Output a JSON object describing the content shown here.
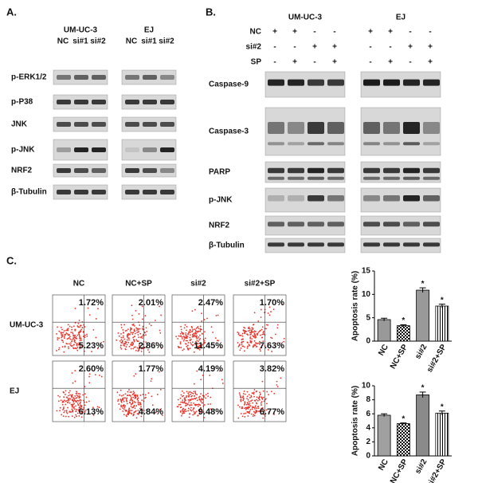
{
  "panel_a": {
    "label": "A.",
    "groups": [
      {
        "name": "UM-UC-3",
        "lanes": [
          "NC",
          "si#1",
          "si#2"
        ]
      },
      {
        "name": "EJ",
        "lanes": [
          "NC",
          "si#1",
          "si#2"
        ]
      }
    ],
    "blots": [
      "p-ERK1/2",
      "p-P38",
      "JNK",
      "p-JNK",
      "NRF2",
      "β-Tubulin"
    ]
  },
  "panel_b": {
    "label": "B.",
    "groups": [
      "UM-UC-3",
      "EJ"
    ],
    "conditions": [
      {
        "name": "NC",
        "signs": [
          "+",
          "+",
          "-",
          "-",
          "+",
          "+",
          "-",
          "-"
        ]
      },
      {
        "name": "si#2",
        "signs": [
          "-",
          "-",
          "+",
          "+",
          "-",
          "-",
          "+",
          "+"
        ]
      },
      {
        "name": "SP",
        "signs": [
          "-",
          "+",
          "-",
          "+",
          "-",
          "+",
          "-",
          "+"
        ]
      }
    ],
    "blots": [
      "Caspase-9",
      "Caspase-3",
      "PARP",
      "p-JNK",
      "NRF2",
      "β-Tubulin"
    ]
  },
  "panel_c": {
    "label": "C.",
    "columns": [
      "NC",
      "NC+SP",
      "si#2",
      "si#2+SP"
    ],
    "rows": [
      {
        "name": "UM-UC-3",
        "upper": [
          "1.72%",
          "2.01%",
          "2.47%",
          "1.70%"
        ],
        "lower": [
          "5.23%",
          "2.86%",
          "11.45%",
          "7.63%"
        ]
      },
      {
        "name": "EJ",
        "upper": [
          "2.60%",
          "1.77%",
          "4.19%",
          "3.82%"
        ],
        "lower": [
          "6.13%",
          "4.84%",
          "9.48%",
          "6.77%"
        ]
      }
    ],
    "charts": [
      {
        "type": "bar",
        "ylabel": "Apoptosis rate (%)",
        "categories": [
          "NC",
          "NC+SP",
          "si#2",
          "si#2+SP"
        ],
        "values": [
          4.6,
          3.3,
          10.9,
          7.5
        ],
        "errors": [
          0.3,
          0.2,
          0.5,
          0.4
        ],
        "ylim": [
          0,
          15
        ],
        "yticks": [
          0,
          5,
          10,
          15
        ],
        "significance": [
          null,
          "*",
          "*",
          "*"
        ]
      },
      {
        "type": "bar",
        "ylabel": "Apoptosis rate (%)",
        "categories": [
          "NC",
          "NC+SP",
          "si#2",
          "si#2+SP"
        ],
        "values": [
          5.8,
          4.6,
          8.7,
          6.1
        ],
        "errors": [
          0.2,
          0.1,
          0.4,
          0.3
        ],
        "ylim": [
          0,
          10
        ],
        "yticks": [
          0,
          2,
          4,
          6,
          8,
          10
        ],
        "significance": [
          null,
          "*",
          "*",
          "*"
        ]
      }
    ]
  }
}
